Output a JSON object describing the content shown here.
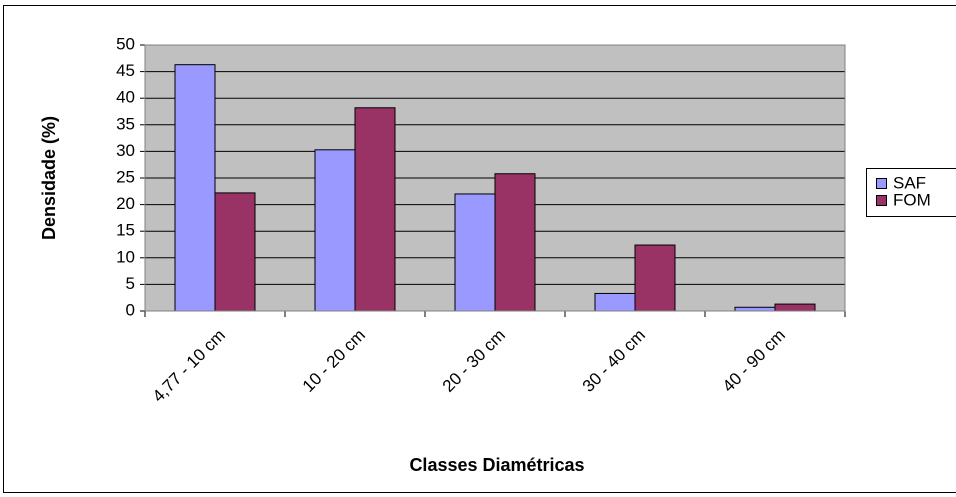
{
  "chart_data": {
    "type": "bar",
    "categories": [
      "4,77 - 10 cm",
      "10 - 20 cm",
      "20 - 30 cm",
      "30 - 40 cm",
      "40 - 90 cm"
    ],
    "series": [
      {
        "name": "SAF",
        "color": "#9999ff",
        "values": [
          46.3,
          30.3,
          22,
          3.3,
          0.7
        ]
      },
      {
        "name": "FOM",
        "color": "#993366",
        "values": [
          22.2,
          38.2,
          25.8,
          12.4,
          1.3
        ]
      }
    ],
    "xlabel": "Classes Diamétricas",
    "ylabel": "Densidade (%)",
    "ylim": [
      0,
      50
    ],
    "yticks": [
      0,
      5,
      10,
      15,
      20,
      25,
      30,
      35,
      40,
      45,
      50
    ],
    "grid": true,
    "legend": "right",
    "plot_background": "#c0c0c0"
  }
}
